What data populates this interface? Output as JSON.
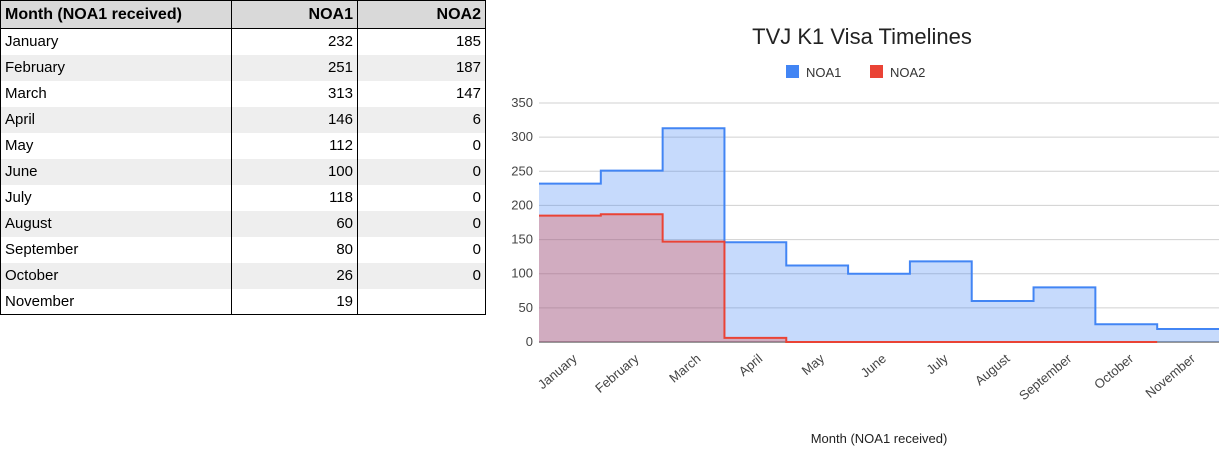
{
  "table": {
    "headers": [
      "Month (NOA1 received)",
      "NOA1",
      "NOA2"
    ],
    "rows": [
      [
        "January",
        "232",
        "185"
      ],
      [
        "February",
        "251",
        "187"
      ],
      [
        "March",
        "313",
        "147"
      ],
      [
        "April",
        "146",
        "6"
      ],
      [
        "May",
        "112",
        "0"
      ],
      [
        "June",
        "100",
        "0"
      ],
      [
        "July",
        "118",
        "0"
      ],
      [
        "August",
        "60",
        "0"
      ],
      [
        "September",
        "80",
        "0"
      ],
      [
        "October",
        "26",
        "0"
      ],
      [
        "November",
        "19",
        ""
      ]
    ]
  },
  "chart_data": {
    "type": "area",
    "title": "TVJ K1 Visa Timelines",
    "xlabel": "Month (NOA1 received)",
    "ylabel": "",
    "categories": [
      "January",
      "February",
      "March",
      "April",
      "May",
      "June",
      "July",
      "August",
      "September",
      "October",
      "November"
    ],
    "series": [
      {
        "name": "NOA1",
        "color": "#4285f4",
        "values": [
          232,
          251,
          313,
          146,
          112,
          100,
          118,
          60,
          80,
          26,
          19
        ]
      },
      {
        "name": "NOA2",
        "color": "#ea4335",
        "values": [
          185,
          187,
          147,
          6,
          0,
          0,
          0,
          0,
          0,
          0,
          null
        ]
      }
    ],
    "ylim": [
      0,
      350
    ],
    "yticks": [
      0,
      50,
      100,
      150,
      200,
      250,
      300,
      350
    ],
    "step": true,
    "grid": true,
    "legend": "top"
  }
}
